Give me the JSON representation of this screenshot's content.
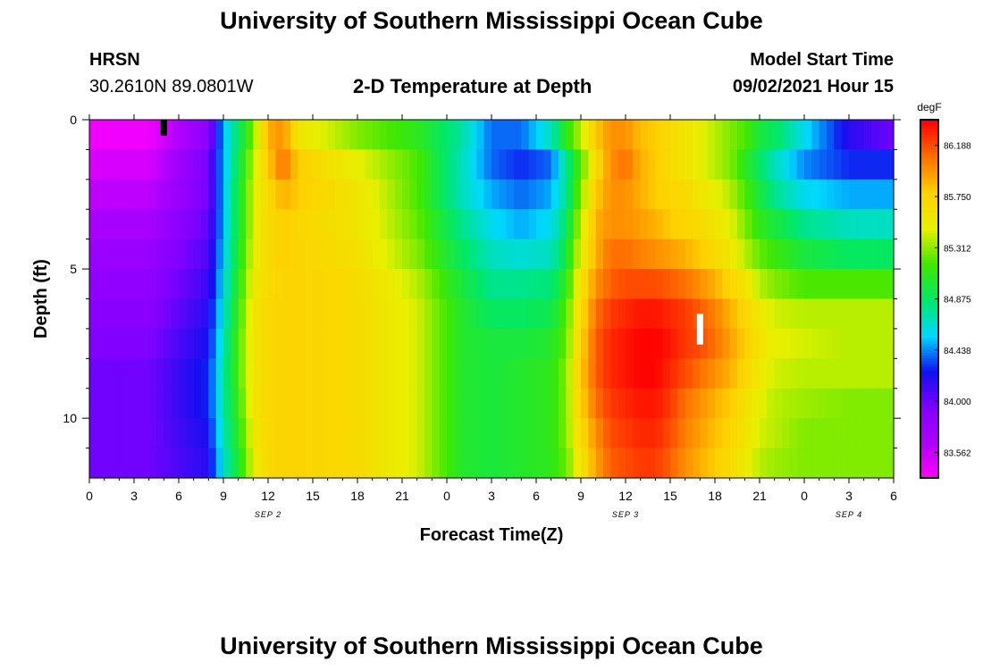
{
  "header": {
    "title": "University of Southern Mississippi Ocean Cube",
    "station": "HRSN",
    "coords": "30.2610N  89.0801W",
    "plot_title": "2-D Temperature at Depth",
    "model_label": "Model Start Time",
    "model_time": "09/02/2021 Hour 15"
  },
  "footer": {
    "title": "University of Southern Mississippi Ocean Cube"
  },
  "chart_data": {
    "type": "heatmap",
    "title": "2-D Temperature at Depth",
    "xlabel": "Forecast Time(Z)",
    "ylabel": "Depth (ft)",
    "x_tick_labels": [
      "0",
      "3",
      "6",
      "9",
      "12",
      "15",
      "18",
      "21",
      "0",
      "3",
      "6",
      "9",
      "12",
      "15",
      "18",
      "21",
      "0",
      "3",
      "6"
    ],
    "x_tick_hours": [
      0,
      3,
      6,
      9,
      12,
      15,
      18,
      21,
      24,
      27,
      30,
      33,
      36,
      39,
      42,
      45,
      48,
      51,
      54
    ],
    "date_labels": [
      {
        "text": "SEP 2",
        "hour": 12
      },
      {
        "text": "SEP 3",
        "hour": 36
      },
      {
        "text": "SEP 4",
        "hour": 51
      }
    ],
    "xlim": [
      0,
      54
    ],
    "y_tick_labels": [
      "0",
      "5",
      "10"
    ],
    "y_tick_values": [
      0,
      5,
      10
    ],
    "y_minor_ticks": [
      1,
      2,
      3,
      4,
      6,
      7,
      8,
      9,
      11
    ],
    "ylim": [
      0,
      12
    ],
    "y_reversed": true,
    "colorbar": {
      "unit": "degF",
      "min": 83.344,
      "max": 86.407,
      "tick_labels": [
        "86.188",
        "85.750",
        "85.312",
        "84.875",
        "84.438",
        "84.000",
        "83.562"
      ],
      "colors": [
        "#ff00ff",
        "#b000ff",
        "#8000ff",
        "#1010f0",
        "#00d8ff",
        "#00e868",
        "#40e800",
        "#e8f000",
        "#ffd000",
        "#ff7000",
        "#ff0000"
      ]
    },
    "time_knots": [
      0,
      4,
      8,
      9,
      10,
      11,
      12,
      13,
      14,
      18,
      22,
      25,
      27,
      29,
      31,
      32,
      33,
      34,
      35,
      36,
      37,
      38,
      39,
      40,
      41,
      42,
      43,
      44,
      45,
      46,
      48,
      51,
      54
    ],
    "depth_rows": [
      0.5,
      1.5,
      2.5,
      3.5,
      4.5,
      5.5,
      6.5,
      7.5,
      8.5,
      9.5,
      10.5,
      11.5
    ],
    "values": [
      [
        83.4,
        83.4,
        83.9,
        84.5,
        84.9,
        85.3,
        85.9,
        86.0,
        85.6,
        85.3,
        85.1,
        84.75,
        84.4,
        84.4,
        84.7,
        85.1,
        85.4,
        85.8,
        86.0,
        86.0,
        85.85,
        85.8,
        85.7,
        85.6,
        85.5,
        85.4,
        85.3,
        85.2,
        85.0,
        84.9,
        84.6,
        84.2,
        84.0
      ],
      [
        83.5,
        83.5,
        84.0,
        84.5,
        84.95,
        85.4,
        85.8,
        86.1,
        85.8,
        85.5,
        85.2,
        84.7,
        84.4,
        84.3,
        84.4,
        84.8,
        85.2,
        85.7,
        86.0,
        86.1,
        85.9,
        85.8,
        85.7,
        85.6,
        85.5,
        85.4,
        85.3,
        85.1,
        84.9,
        84.7,
        84.45,
        84.3,
        84.3
      ],
      [
        83.6,
        83.6,
        84.0,
        84.5,
        85.0,
        85.45,
        85.7,
        85.9,
        85.8,
        85.6,
        85.2,
        84.7,
        84.5,
        84.4,
        84.5,
        84.8,
        85.3,
        85.8,
        86.0,
        86.0,
        85.9,
        85.8,
        85.75,
        85.7,
        85.6,
        85.5,
        85.4,
        85.2,
        85.0,
        84.8,
        84.6,
        84.5,
        84.5
      ],
      [
        83.7,
        83.7,
        84.05,
        84.5,
        85.0,
        85.45,
        85.7,
        85.8,
        85.75,
        85.6,
        85.25,
        84.8,
        84.6,
        84.5,
        84.6,
        84.9,
        85.4,
        85.9,
        86.0,
        86.0,
        85.95,
        85.9,
        85.8,
        85.75,
        85.7,
        85.6,
        85.5,
        85.3,
        85.1,
        85.0,
        84.8,
        84.7,
        84.7
      ],
      [
        83.8,
        83.8,
        84.1,
        84.55,
        85.05,
        85.5,
        85.7,
        85.8,
        85.75,
        85.65,
        85.3,
        84.9,
        84.7,
        84.65,
        84.7,
        85.0,
        85.5,
        85.9,
        86.1,
        86.1,
        86.05,
        86.0,
        85.95,
        85.9,
        85.8,
        85.7,
        85.6,
        85.4,
        85.25,
        85.15,
        85.0,
        84.9,
        84.9
      ],
      [
        83.85,
        83.85,
        84.15,
        84.6,
        85.1,
        85.55,
        85.7,
        85.75,
        85.75,
        85.7,
        85.4,
        85.0,
        84.8,
        84.8,
        84.85,
        85.1,
        85.6,
        86.0,
        86.15,
        86.2,
        86.2,
        86.2,
        86.15,
        86.1,
        86.0,
        85.9,
        85.75,
        85.6,
        85.4,
        85.3,
        85.2,
        85.2,
        85.2
      ],
      [
        83.9,
        83.9,
        84.2,
        84.65,
        85.15,
        85.6,
        85.72,
        85.75,
        85.75,
        85.7,
        85.45,
        85.05,
        84.9,
        84.9,
        84.95,
        85.2,
        85.7,
        86.1,
        86.25,
        86.3,
        86.35,
        86.35,
        86.3,
        86.25,
        86.15,
        86.05,
        85.9,
        85.75,
        85.55,
        85.45,
        85.4,
        85.4,
        85.4
      ],
      [
        83.95,
        83.95,
        84.25,
        84.7,
        85.2,
        85.6,
        85.72,
        85.75,
        85.75,
        85.7,
        85.45,
        85.05,
        85.0,
        85.0,
        85.05,
        85.25,
        85.75,
        86.15,
        86.3,
        86.35,
        86.4,
        86.4,
        86.35,
        86.25,
        86.2,
        86.1,
        85.95,
        85.8,
        85.6,
        85.5,
        85.45,
        85.4,
        85.4
      ],
      [
        84.0,
        84.0,
        84.3,
        84.75,
        85.2,
        85.6,
        85.72,
        85.75,
        85.75,
        85.7,
        85.45,
        85.05,
        85.0,
        85.05,
        85.1,
        85.3,
        85.8,
        86.15,
        86.3,
        86.35,
        86.4,
        86.4,
        86.3,
        86.2,
        86.1,
        86.0,
        85.9,
        85.75,
        85.55,
        85.45,
        85.4,
        85.4,
        85.4
      ],
      [
        84.0,
        84.0,
        84.3,
        84.75,
        85.15,
        85.6,
        85.72,
        85.75,
        85.75,
        85.7,
        85.45,
        85.05,
        85.0,
        85.05,
        85.1,
        85.3,
        85.75,
        86.1,
        86.25,
        86.3,
        86.35,
        86.35,
        86.25,
        86.1,
        86.0,
        85.9,
        85.8,
        85.65,
        85.5,
        85.4,
        85.35,
        85.3,
        85.3
      ],
      [
        84.0,
        84.0,
        84.25,
        84.7,
        85.1,
        85.55,
        85.72,
        85.75,
        85.75,
        85.7,
        85.45,
        85.05,
        85.0,
        85.05,
        85.1,
        85.3,
        85.7,
        86.0,
        86.2,
        86.25,
        86.3,
        86.3,
        86.2,
        86.05,
        85.95,
        85.85,
        85.75,
        85.6,
        85.45,
        85.4,
        85.3,
        85.3,
        85.3
      ],
      [
        84.0,
        84.0,
        84.2,
        84.65,
        85.05,
        85.5,
        85.72,
        85.75,
        85.75,
        85.7,
        85.45,
        85.05,
        85.0,
        85.05,
        85.1,
        85.25,
        85.6,
        85.95,
        86.15,
        86.2,
        86.25,
        86.25,
        86.15,
        86.0,
        85.9,
        85.8,
        85.7,
        85.55,
        85.4,
        85.35,
        85.3,
        85.3,
        85.3
      ]
    ],
    "markers": [
      {
        "name": "surface-marker",
        "hour": 5,
        "depth_from": 0,
        "depth_to": 0.5,
        "color": "#000000"
      },
      {
        "name": "max-marker",
        "hour": 41,
        "depth_from": 6.5,
        "depth_to": 7.5,
        "color": "#ffffff"
      }
    ]
  }
}
